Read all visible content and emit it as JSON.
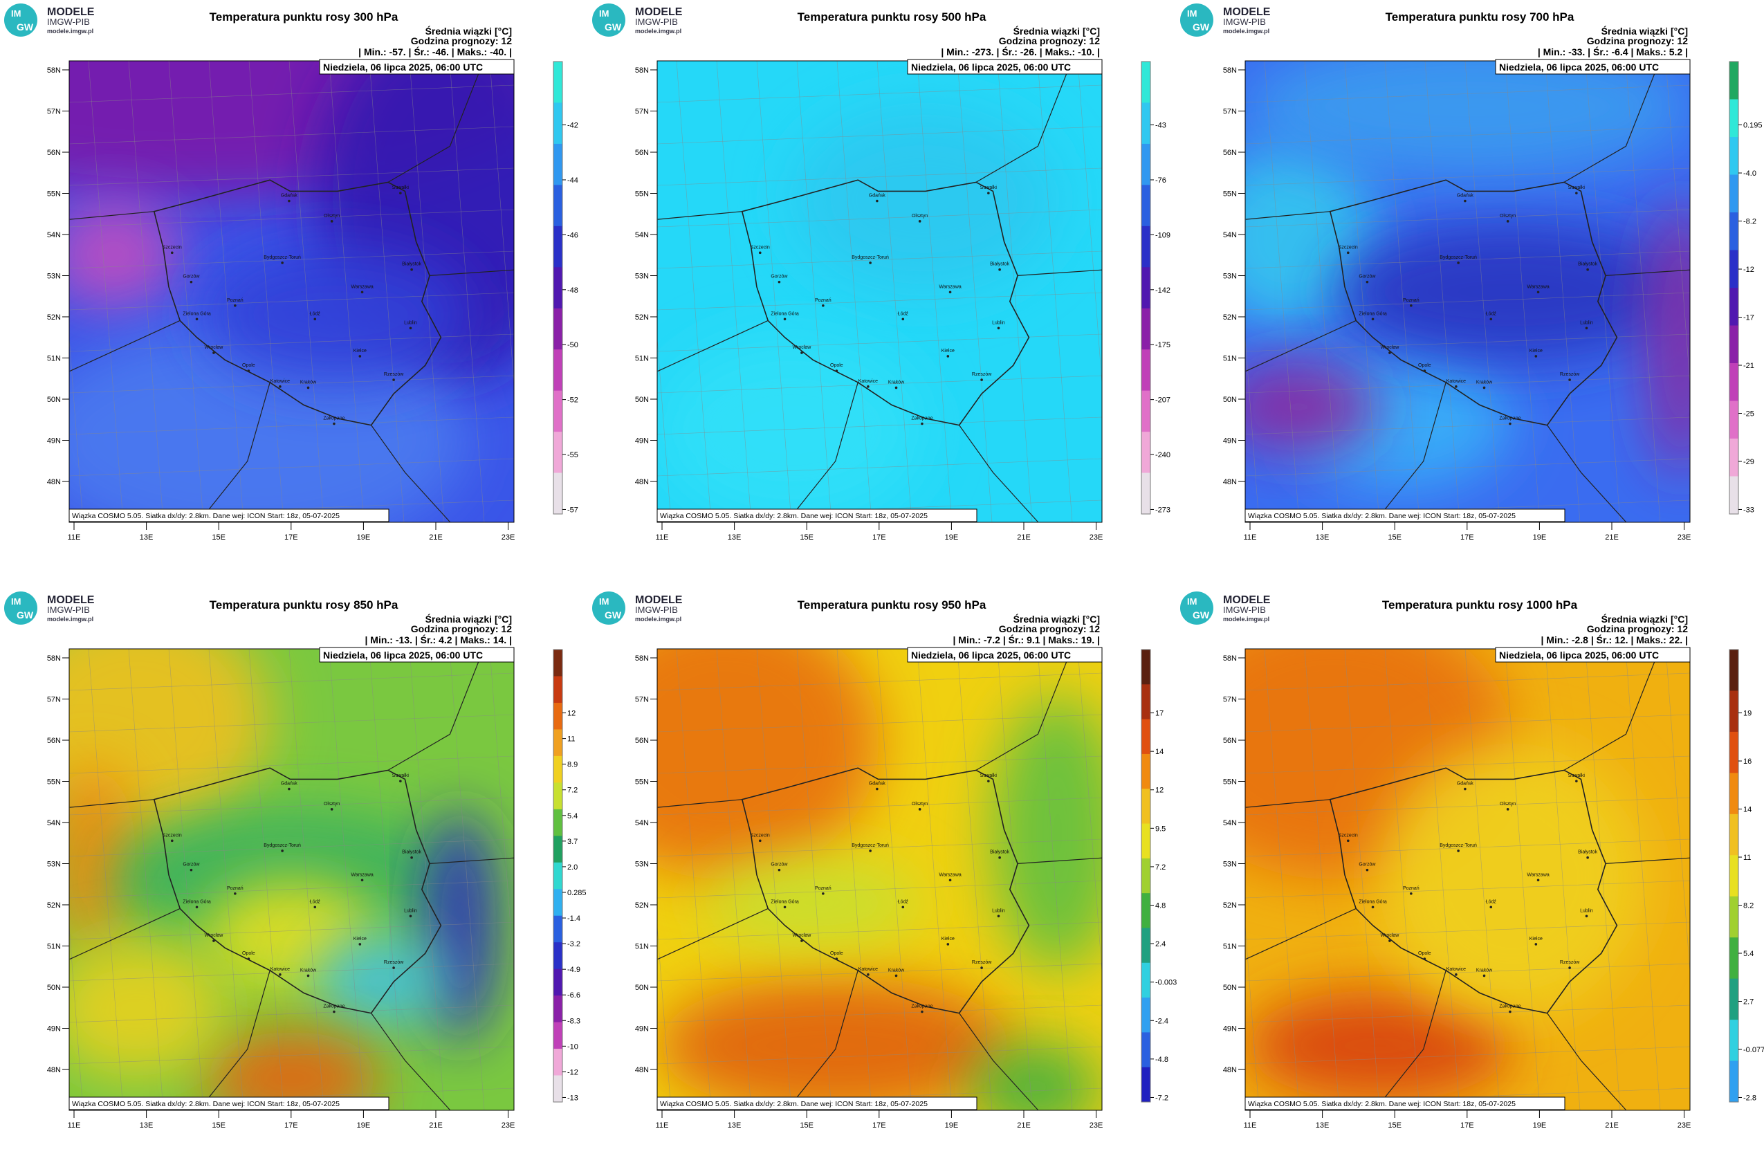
{
  "logo": {
    "badge_top": "IM",
    "badge_bottom": "GW",
    "line1": "MODELE",
    "line2": "IMGW-PIB",
    "url": "modele.imgw.pl"
  },
  "header_label": "Średnia wiązki [°C]",
  "forecast_hour": "Godzina prognozy: 12",
  "valid_time": "Niedziela, 06 lipca 2025, 06:00 UTC",
  "footer": "Wiązka COSMO 5.05. Siatka dx/dy: 2.8km. Dane wej: ICON Start: 18z, 05-07-2025",
  "lat_labels": [
    "58N",
    "57N",
    "56N",
    "55N",
    "54N",
    "53N",
    "52N",
    "51N",
    "50N",
    "49N",
    "48N"
  ],
  "lon_labels": [
    "11E",
    "13E",
    "15E",
    "17E",
    "19E",
    "21E",
    "23E"
  ],
  "cities": [
    "Gdańsk",
    "Olsztyn",
    "Suwałki",
    "Białystok",
    "Szczecin",
    "Bydgoszcz-Toruń",
    "Gorzów",
    "Poznań",
    "Warszawa",
    "Zielona Góra",
    "Łódź",
    "Lublin",
    "Wrocław",
    "Kielce",
    "Opole",
    "Katowice",
    "Kraków",
    "Rzeszów",
    "Zakopane"
  ],
  "panels": [
    {
      "title": "Temperatura punktu rosy 300 hPa",
      "stats": "| Min.:   -57. | Śr.:   -46. | Maks.:   -40. |",
      "colorbar_ticks": [
        "-42",
        "-44",
        "-46",
        "-48",
        "-50",
        "-52",
        "-55",
        "-57"
      ],
      "colorbar_colors": [
        "#30e8d8",
        "#30c8f0",
        "#3098f0",
        "#2a60e0",
        "#2a30c8",
        "#5018b0",
        "#8a20a8",
        "#c040b8",
        "#e070c8",
        "#f0a8d8",
        "#e8e0e8"
      ]
    },
    {
      "title": "Temperatura punktu rosy 500 hPa",
      "stats": "| Min.:   -273. | Śr.:   -26. | Maks.:   -10. |",
      "colorbar_ticks": [
        "-43",
        "-76",
        "-109",
        "-142",
        "-175",
        "-207",
        "-240",
        "-273"
      ],
      "colorbar_colors": [
        "#30e8d8",
        "#30c8f0",
        "#3098f0",
        "#2a60e0",
        "#2a30c8",
        "#5018b0",
        "#8a20a8",
        "#c040b8",
        "#e070c8",
        "#f0a8d8",
        "#e8e0e8"
      ]
    },
    {
      "title": "Temperatura punktu rosy 700 hPa",
      "stats": "| Min.:   -33. | Śr.:   -6.4 | Maks.:   5.2 |",
      "colorbar_ticks": [
        "0.195",
        "-4.0",
        "-8.2",
        "-12",
        "-17",
        "-21",
        "-25",
        "-29",
        "-33"
      ],
      "colorbar_colors": [
        "#20a860",
        "#30e8d8",
        "#30c8f0",
        "#3098f0",
        "#2a60e0",
        "#2a30c8",
        "#5018b0",
        "#8a20a8",
        "#c040b8",
        "#e070c8",
        "#f0a8d8",
        "#e8e0e8"
      ]
    },
    {
      "title": "Temperatura punktu rosy 850 hPa",
      "stats": "| Min.:   -13. | Śr.:   4.2 | Maks.:   14. |",
      "colorbar_ticks": [
        "12",
        "11",
        "8.9",
        "7.2",
        "5.4",
        "3.7",
        "2.0",
        "0.285",
        "-1.4",
        "-3.2",
        "-4.9",
        "-6.6",
        "-8.3",
        "-10",
        "-12",
        "-13"
      ],
      "colorbar_colors": [
        "#7a2a10",
        "#c83a10",
        "#e86a10",
        "#f0a020",
        "#f0d020",
        "#c8e030",
        "#60c040",
        "#20a060",
        "#30d8d0",
        "#30b0f0",
        "#2a60e0",
        "#2a30c8",
        "#5018b0",
        "#8a20a8",
        "#c040b8",
        "#f0a8d8",
        "#e8e0e8"
      ]
    },
    {
      "title": "Temperatura punktu rosy 950 hPa",
      "stats": "| Min.:   -7.2 | Śr.:   9.1 | Maks.:   19. |",
      "colorbar_ticks": [
        "17",
        "14",
        "12",
        "9.5",
        "7.2",
        "4.8",
        "2.4",
        "-0.003",
        "-2.4",
        "-4.8",
        "-7.2"
      ],
      "colorbar_colors": [
        "#5a2010",
        "#a83010",
        "#e05010",
        "#f08a10",
        "#f0c020",
        "#e8e020",
        "#a0d030",
        "#40b040",
        "#20a080",
        "#30d0e0",
        "#30a0f0",
        "#2a60e0",
        "#2020c0"
      ]
    },
    {
      "title": "Temperatura punktu rosy 1000 hPa",
      "stats": "| Min.:   -2.8 | Śr.:   12. | Maks.:   22. |",
      "colorbar_ticks": [
        "19",
        "16",
        "14",
        "11",
        "8.2",
        "5.4",
        "2.7",
        "-0.077",
        "-2.8"
      ],
      "colorbar_colors": [
        "#5a2010",
        "#a83010",
        "#e05010",
        "#f08a10",
        "#f0c020",
        "#e8e020",
        "#a0d030",
        "#40b040",
        "#20a080",
        "#30d0e0",
        "#30a0f0"
      ]
    }
  ]
}
